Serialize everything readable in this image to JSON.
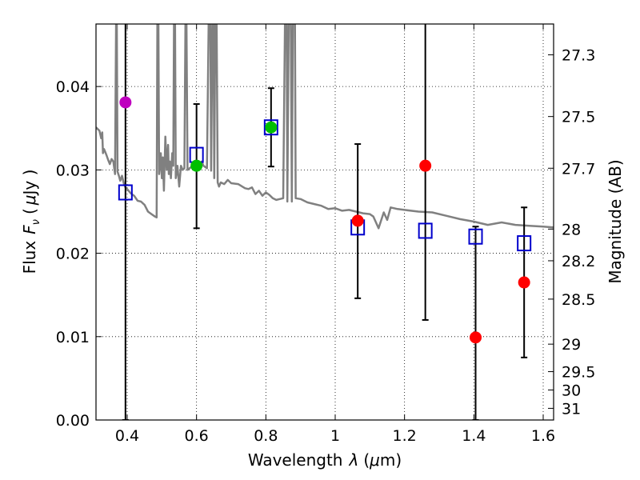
{
  "chart_data": {
    "type": "scatter",
    "xlabel_prefix": "Wavelength",
    "xlabel_symbol": "λ",
    "xlabel_unit_open": "(",
    "xlabel_unit_mu": "μ",
    "xlabel_unit_rest": "m)",
    "ylabel_prefix": "Flux",
    "ylabel_symbol": "F",
    "ylabel_subscript": "ν",
    "ylabel_unit_open": "(",
    "ylabel_unit_mu": "μ",
    "ylabel_unit_rest": "Jy )",
    "y2label": "Magnitude (AB)",
    "xlim": [
      0.31,
      1.63
    ],
    "ylim": [
      0.0,
      0.0475
    ],
    "grid": true,
    "x_ticks": [
      0.4,
      0.6,
      0.8,
      1.0,
      1.2,
      1.4,
      1.6
    ],
    "x_tick_labels": [
      "0.4",
      "0.6",
      "0.8",
      "1",
      "1.2",
      "1.4",
      "1.6"
    ],
    "y_ticks": [
      0.0,
      0.01,
      0.02,
      0.03,
      0.04
    ],
    "y_tick_labels": [
      "0.00",
      "0.01",
      "0.02",
      "0.03",
      "0.04"
    ],
    "mag_ticks": [
      {
        "label": "27.3",
        "flux": 0.0438
      },
      {
        "label": "27.5",
        "flux": 0.0364
      },
      {
        "label": "27.7",
        "flux": 0.0302
      },
      {
        "label": "28",
        "flux": 0.0229
      },
      {
        "label": "28.2",
        "flux": 0.0191
      },
      {
        "label": "28.5",
        "flux": 0.0145
      },
      {
        "label": "29",
        "flux": 0.0091
      },
      {
        "label": "29.5",
        "flux": 0.0058
      },
      {
        "label": "30",
        "flux": 0.0036
      },
      {
        "label": "31",
        "flux": 0.0014
      }
    ],
    "series": [
      {
        "name": "model spectrum",
        "kind": "line",
        "color": "#808080",
        "points": [
          [
            0.31,
            0.0351
          ],
          [
            0.32,
            0.0347
          ],
          [
            0.325,
            0.0338
          ],
          [
            0.328,
            0.0345
          ],
          [
            0.33,
            0.032
          ],
          [
            0.333,
            0.0325
          ],
          [
            0.336,
            0.0322
          ],
          [
            0.34,
            0.0318
          ],
          [
            0.345,
            0.0312
          ],
          [
            0.35,
            0.0307
          ],
          [
            0.355,
            0.0313
          ],
          [
            0.36,
            0.031
          ],
          [
            0.365,
            0.0295
          ],
          [
            0.368,
            0.0475
          ],
          [
            0.37,
            0.0475
          ],
          [
            0.372,
            0.0298
          ],
          [
            0.376,
            0.0293
          ],
          [
            0.38,
            0.0287
          ],
          [
            0.385,
            0.0293
          ],
          [
            0.39,
            0.0284
          ],
          [
            0.395,
            0.0279
          ],
          [
            0.4,
            0.0277
          ],
          [
            0.41,
            0.0272
          ],
          [
            0.42,
            0.0269
          ],
          [
            0.43,
            0.0263
          ],
          [
            0.44,
            0.0262
          ],
          [
            0.45,
            0.0258
          ],
          [
            0.46,
            0.025
          ],
          [
            0.47,
            0.0247
          ],
          [
            0.48,
            0.0244
          ],
          [
            0.485,
            0.0243
          ],
          [
            0.487,
            0.0475
          ],
          [
            0.49,
            0.0475
          ],
          [
            0.492,
            0.0295
          ],
          [
            0.497,
            0.032
          ],
          [
            0.5,
            0.029
          ],
          [
            0.503,
            0.0315
          ],
          [
            0.506,
            0.0275
          ],
          [
            0.51,
            0.034
          ],
          [
            0.514,
            0.03
          ],
          [
            0.518,
            0.033
          ],
          [
            0.52,
            0.0295
          ],
          [
            0.523,
            0.031
          ],
          [
            0.526,
            0.029
          ],
          [
            0.53,
            0.032
          ],
          [
            0.533,
            0.0305
          ],
          [
            0.535,
            0.0475
          ],
          [
            0.538,
            0.0475
          ],
          [
            0.54,
            0.029
          ],
          [
            0.545,
            0.0305
          ],
          [
            0.55,
            0.028
          ],
          [
            0.555,
            0.0305
          ],
          [
            0.56,
            0.03
          ],
          [
            0.565,
            0.0302
          ],
          [
            0.568,
            0.0475
          ],
          [
            0.571,
            0.0475
          ],
          [
            0.574,
            0.03
          ],
          [
            0.58,
            0.0302
          ],
          [
            0.59,
            0.0305
          ],
          [
            0.6,
            0.03
          ],
          [
            0.61,
            0.0303
          ],
          [
            0.615,
            0.031
          ],
          [
            0.62,
            0.0305
          ],
          [
            0.63,
            0.0302
          ],
          [
            0.635,
            0.0475
          ],
          [
            0.64,
            0.0475
          ],
          [
            0.642,
            0.0299
          ],
          [
            0.646,
            0.0475
          ],
          [
            0.649,
            0.0475
          ],
          [
            0.651,
            0.029
          ],
          [
            0.654,
            0.0475
          ],
          [
            0.658,
            0.0475
          ],
          [
            0.661,
            0.0285
          ],
          [
            0.665,
            0.028
          ],
          [
            0.67,
            0.0285
          ],
          [
            0.68,
            0.0283
          ],
          [
            0.69,
            0.0288
          ],
          [
            0.7,
            0.0284
          ],
          [
            0.72,
            0.0283
          ],
          [
            0.74,
            0.0278
          ],
          [
            0.75,
            0.0277
          ],
          [
            0.76,
            0.0279
          ],
          [
            0.77,
            0.0271
          ],
          [
            0.78,
            0.0275
          ],
          [
            0.79,
            0.0269
          ],
          [
            0.8,
            0.0273
          ],
          [
            0.81,
            0.027
          ],
          [
            0.82,
            0.0266
          ],
          [
            0.83,
            0.0264
          ],
          [
            0.84,
            0.0265
          ],
          [
            0.85,
            0.0266
          ],
          [
            0.855,
            0.0475
          ],
          [
            0.86,
            0.0475
          ],
          [
            0.862,
            0.0262
          ],
          [
            0.866,
            0.0475
          ],
          [
            0.872,
            0.0475
          ],
          [
            0.875,
            0.0262
          ],
          [
            0.878,
            0.0475
          ],
          [
            0.884,
            0.0475
          ],
          [
            0.886,
            0.0266
          ],
          [
            0.9,
            0.0265
          ],
          [
            0.92,
            0.0261
          ],
          [
            0.94,
            0.0259
          ],
          [
            0.96,
            0.0257
          ],
          [
            0.98,
            0.0253
          ],
          [
            1.0,
            0.0254
          ],
          [
            1.02,
            0.0251
          ],
          [
            1.04,
            0.0252
          ],
          [
            1.06,
            0.025
          ],
          [
            1.08,
            0.0248
          ],
          [
            1.1,
            0.0247
          ],
          [
            1.11,
            0.0244
          ],
          [
            1.125,
            0.023
          ],
          [
            1.14,
            0.0249
          ],
          [
            1.15,
            0.024
          ],
          [
            1.16,
            0.0255
          ],
          [
            1.18,
            0.0253
          ],
          [
            1.2,
            0.0252
          ],
          [
            1.24,
            0.025
          ],
          [
            1.28,
            0.0249
          ],
          [
            1.32,
            0.0245
          ],
          [
            1.36,
            0.0241
          ],
          [
            1.4,
            0.0238
          ],
          [
            1.44,
            0.0234
          ],
          [
            1.48,
            0.0237
          ],
          [
            1.52,
            0.0234
          ],
          [
            1.56,
            0.0233
          ],
          [
            1.6,
            0.0232
          ],
          [
            1.63,
            0.0231
          ]
        ]
      },
      {
        "name": "model fluxes",
        "kind": "open-square",
        "color": "#0000cc",
        "x": [
          0.395,
          0.6,
          0.815,
          1.065,
          1.26,
          1.405,
          1.545
        ],
        "y": [
          0.0273,
          0.0318,
          0.0351,
          0.0231,
          0.0227,
          0.022,
          0.0212
        ]
      },
      {
        "name": "magenta point",
        "kind": "circle",
        "color": "#bf00bf",
        "x": [
          0.395
        ],
        "y": [
          0.0381
        ],
        "err_lo": [
          0.0381
        ],
        "err_hi": [
          0.0095
        ]
      },
      {
        "name": "green points",
        "kind": "circle",
        "color": "#00bf00",
        "x": [
          0.6,
          0.815
        ],
        "y": [
          0.0305,
          0.0351
        ],
        "err_lo": [
          0.0075,
          0.0047
        ],
        "err_hi": [
          0.0074,
          0.0047
        ]
      },
      {
        "name": "red points",
        "kind": "circle",
        "color": "#ff0000",
        "x": [
          1.065,
          1.26,
          1.405,
          1.545
        ],
        "y": [
          0.0239,
          0.0305,
          0.0099,
          0.0165
        ],
        "err_lo": [
          0.0093,
          0.0185,
          0.0099,
          0.009
        ],
        "err_hi": [
          0.0092,
          0.0175,
          0.0133,
          0.009
        ]
      }
    ]
  }
}
